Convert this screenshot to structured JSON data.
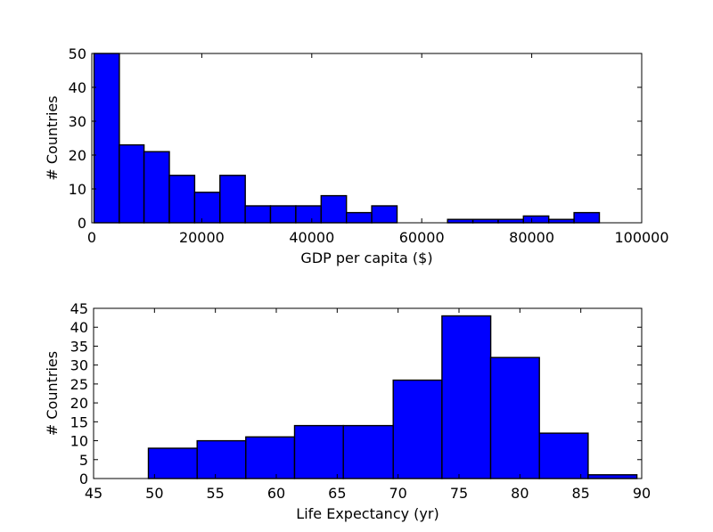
{
  "chart_data": [
    {
      "type": "bar",
      "xlabel": "GDP per capita ($)",
      "ylabel": "# Countries",
      "xlim": [
        0,
        100000
      ],
      "ylim": [
        0,
        50
      ],
      "x_ticks": [
        0,
        20000,
        40000,
        60000,
        80000,
        100000
      ],
      "x_tick_labels": [
        "0",
        "20000",
        "40000",
        "60000",
        "80000",
        "100000"
      ],
      "y_ticks": [
        0,
        10,
        20,
        30,
        40,
        50
      ],
      "y_tick_labels": [
        "0",
        "10",
        "20",
        "30",
        "40",
        "50"
      ],
      "grid": false,
      "bar_color": "#0000ff",
      "edge_color": "#000000",
      "bins": [
        {
          "x0": 400,
          "x1": 5000,
          "value": 50
        },
        {
          "x0": 5000,
          "x1": 9500,
          "value": 23
        },
        {
          "x0": 9500,
          "x1": 14100,
          "value": 21
        },
        {
          "x0": 14100,
          "x1": 18700,
          "value": 14
        },
        {
          "x0": 18700,
          "x1": 23300,
          "value": 9
        },
        {
          "x0": 23300,
          "x1": 27900,
          "value": 14
        },
        {
          "x0": 27900,
          "x1": 32500,
          "value": 5
        },
        {
          "x0": 32500,
          "x1": 37100,
          "value": 5
        },
        {
          "x0": 37100,
          "x1": 41700,
          "value": 5
        },
        {
          "x0": 41700,
          "x1": 46300,
          "value": 8
        },
        {
          "x0": 46300,
          "x1": 50900,
          "value": 3
        },
        {
          "x0": 50900,
          "x1": 55500,
          "value": 5
        },
        {
          "x0": 55500,
          "x1": 60100,
          "value": 0
        },
        {
          "x0": 60100,
          "x1": 64700,
          "value": 0
        },
        {
          "x0": 64700,
          "x1": 69300,
          "value": 1
        },
        {
          "x0": 69300,
          "x1": 73900,
          "value": 1
        },
        {
          "x0": 73900,
          "x1": 78500,
          "value": 1
        },
        {
          "x0": 78500,
          "x1": 83100,
          "value": 2
        },
        {
          "x0": 83100,
          "x1": 87700,
          "value": 1
        },
        {
          "x0": 87700,
          "x1": 92300,
          "value": 3
        }
      ]
    },
    {
      "type": "bar",
      "xlabel": "Life Expectancy (yr)",
      "ylabel": "# Countries",
      "xlim": [
        45,
        90
      ],
      "ylim": [
        0,
        45
      ],
      "x_ticks": [
        45,
        50,
        55,
        60,
        65,
        70,
        75,
        80,
        85,
        90
      ],
      "x_tick_labels": [
        "45",
        "50",
        "55",
        "60",
        "65",
        "70",
        "75",
        "80",
        "85",
        "90"
      ],
      "y_ticks": [
        0,
        5,
        10,
        15,
        20,
        25,
        30,
        35,
        40,
        45
      ],
      "y_tick_labels": [
        "0",
        "5",
        "10",
        "15",
        "20",
        "25",
        "30",
        "35",
        "40",
        "45"
      ],
      "grid": false,
      "bar_color": "#0000ff",
      "edge_color": "#000000",
      "bins": [
        {
          "x0": 49.5,
          "x1": 53.5,
          "value": 8
        },
        {
          "x0": 53.5,
          "x1": 57.5,
          "value": 10
        },
        {
          "x0": 57.5,
          "x1": 61.5,
          "value": 11
        },
        {
          "x0": 61.5,
          "x1": 65.5,
          "value": 14
        },
        {
          "x0": 65.5,
          "x1": 69.6,
          "value": 14
        },
        {
          "x0": 69.6,
          "x1": 73.6,
          "value": 26
        },
        {
          "x0": 73.6,
          "x1": 77.6,
          "value": 43
        },
        {
          "x0": 77.6,
          "x1": 81.6,
          "value": 32
        },
        {
          "x0": 81.6,
          "x1": 85.6,
          "value": 12
        },
        {
          "x0": 85.6,
          "x1": 89.6,
          "value": 1
        }
      ]
    }
  ]
}
